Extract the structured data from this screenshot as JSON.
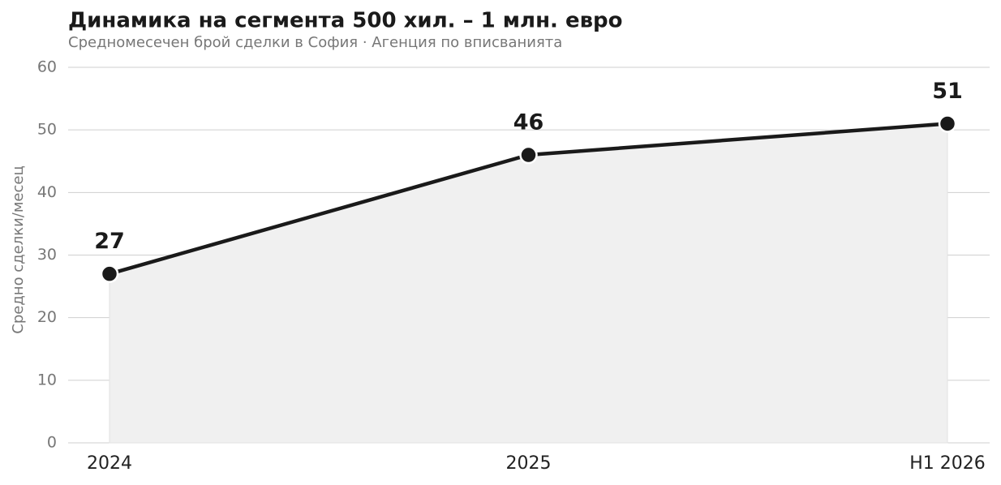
{
  "chart_data": {
    "type": "line",
    "title": "Динамика на сегмента 500 хил. – 1 млн. евро",
    "subtitle": "Средномесечен брой сделки в София  ·  Агенция по вписванията",
    "y_label": "Средно сделки/месец",
    "categories": [
      "2024",
      "2025",
      "H1 2026"
    ],
    "values": [
      27,
      46,
      51
    ],
    "color": "#1a1a1a",
    "area_color": "#f0f0f0",
    "ylim": [
      0,
      60
    ],
    "yticks": [
      0,
      10,
      20,
      30,
      40,
      50,
      60
    ],
    "grid": true
  }
}
